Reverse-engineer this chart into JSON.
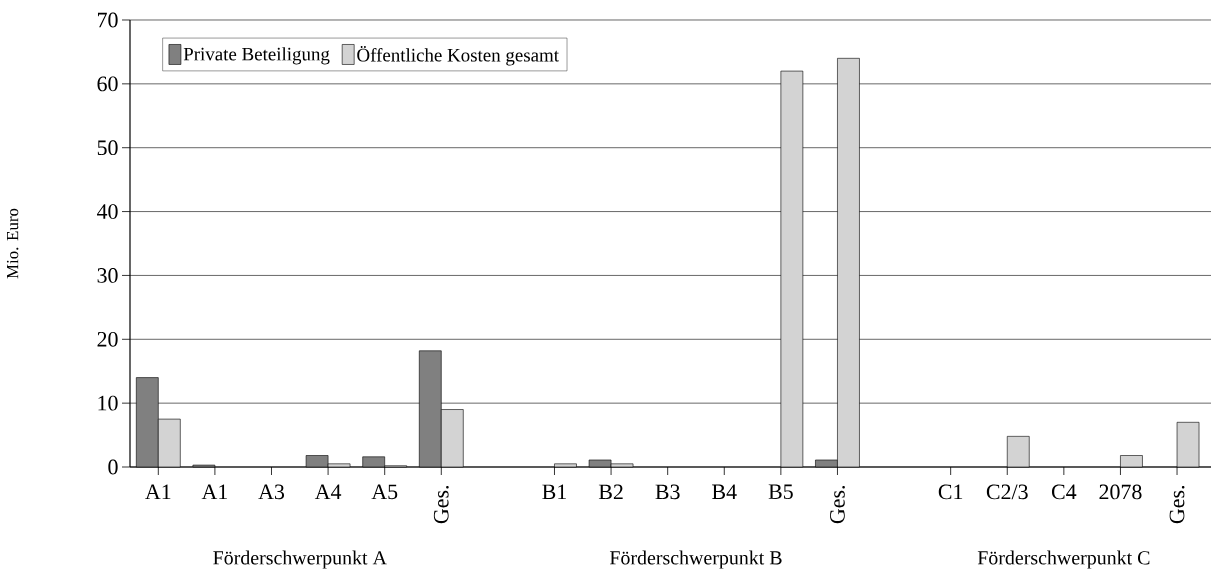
{
  "chart_data": {
    "type": "bar",
    "ylabel": "Mio. Euro",
    "categories": [
      "A1",
      "A1",
      "A3",
      "A4",
      "A5",
      "Ges.",
      null,
      "B1",
      "B2",
      "B3",
      "B4",
      "B5",
      "Ges.",
      null,
      "C1",
      "C2/3",
      "C4",
      "2078",
      "Ges."
    ],
    "series": [
      {
        "name": "Private Beteiligung",
        "color": "#808080",
        "values": [
          14,
          0.3,
          null,
          1.8,
          1.6,
          18.2,
          null,
          null,
          1.1,
          null,
          null,
          null,
          1.1,
          null,
          null,
          null,
          null,
          null,
          null
        ]
      },
      {
        "name": "Öffentliche Kosten gesamt",
        "color": "#d3d3d3",
        "values": [
          7.5,
          null,
          null,
          0.5,
          0.2,
          9,
          null,
          0.5,
          0.5,
          null,
          null,
          62,
          64,
          null,
          null,
          4.8,
          null,
          1.8,
          7
        ]
      }
    ],
    "annotations": [
      "Förderschwerpunkt A",
      "Förderschwerpunkt B",
      "Förderschwerpunkt C"
    ],
    "ylim": [
      0,
      70
    ],
    "yticks": [
      0,
      10,
      20,
      30,
      40,
      50,
      60,
      70
    ],
    "grid": "y",
    "legend": "top left"
  }
}
